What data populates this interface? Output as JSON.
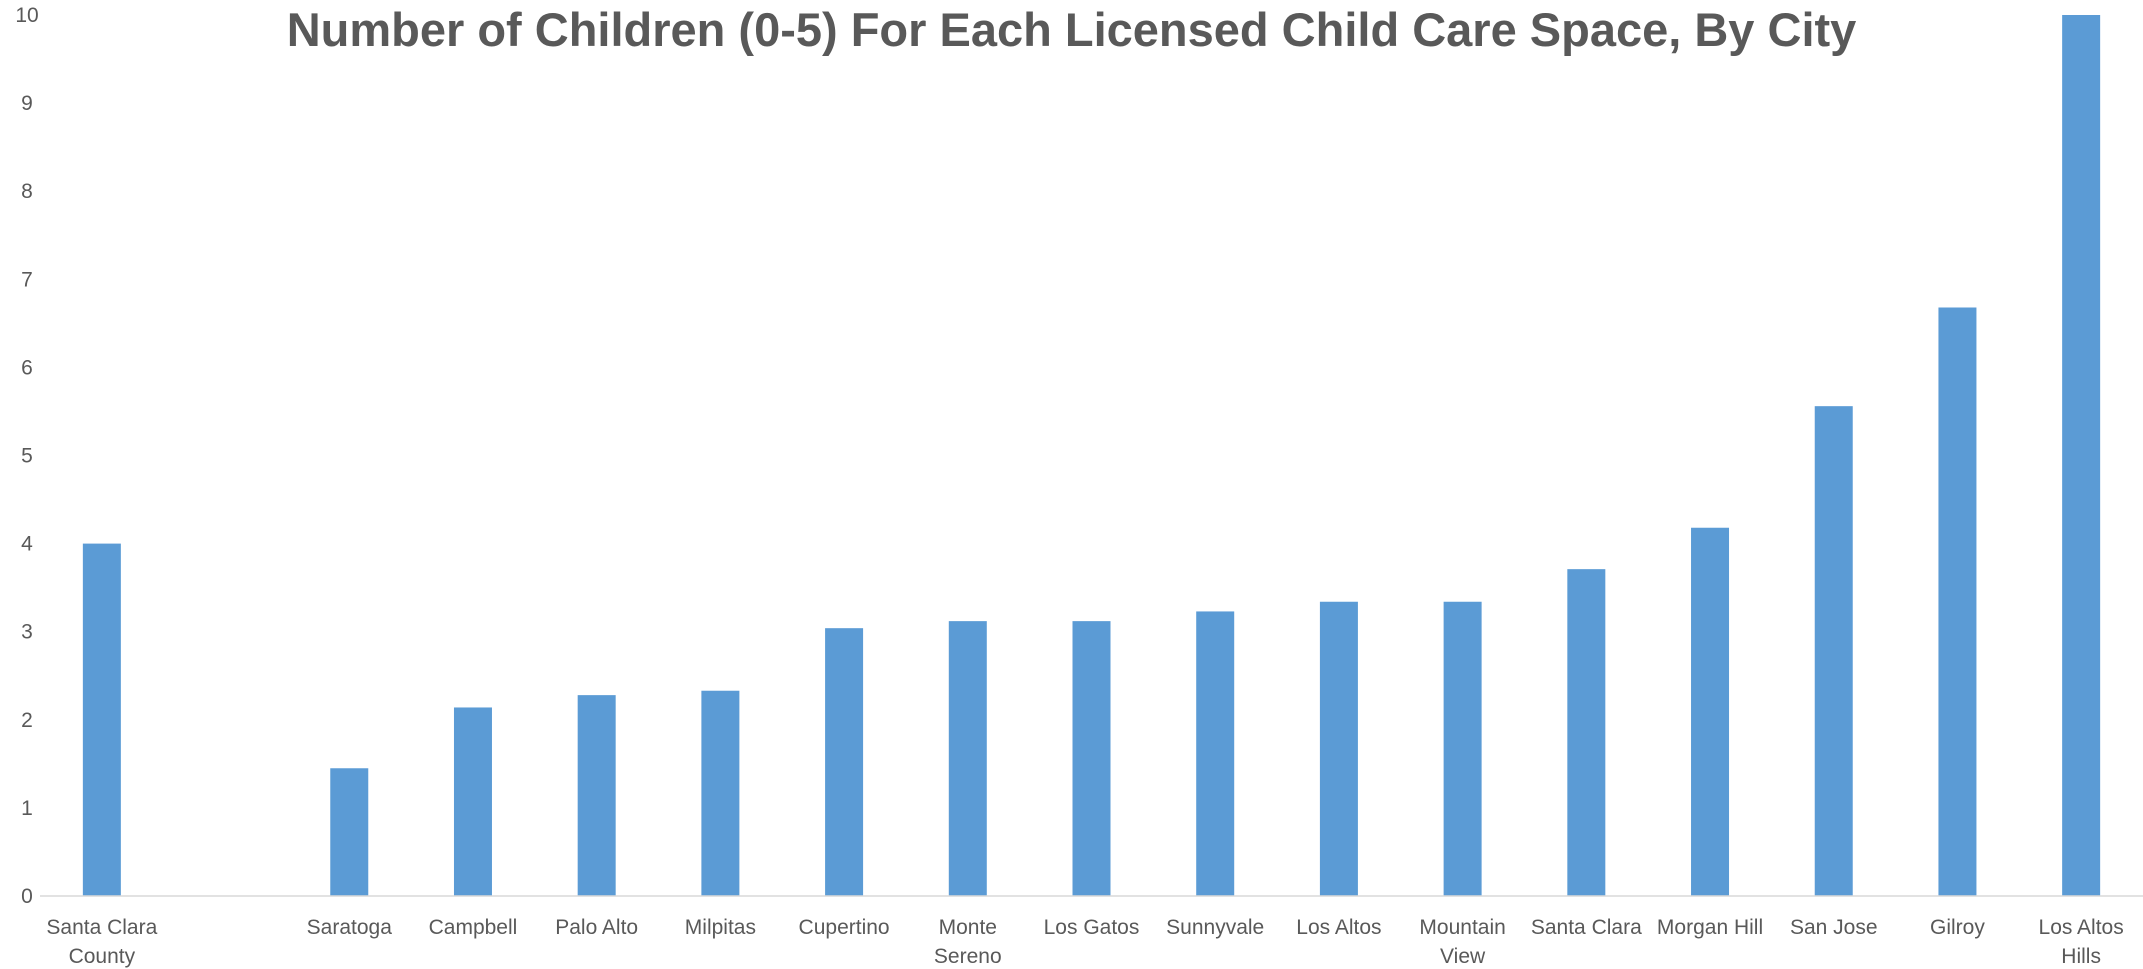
{
  "chart_data": {
    "type": "bar",
    "title": "Number of Children (0-5) For Each Licensed Child Care Space, By City",
    "xlabel": "",
    "ylabel": "",
    "ylim": [
      0,
      10
    ],
    "yticks": [
      0,
      1,
      2,
      3,
      4,
      5,
      6,
      7,
      8,
      9,
      10
    ],
    "grid": false,
    "legend": "none",
    "bar_color": "#5B9BD5",
    "categories": [
      [
        "Santa Clara",
        "County"
      ],
      [
        ""
      ],
      [
        "Saratoga"
      ],
      [
        "Campbell"
      ],
      [
        "Palo Alto"
      ],
      [
        "Milpitas"
      ],
      [
        "Cupertino"
      ],
      [
        "Monte",
        "Sereno"
      ],
      [
        "Los Gatos"
      ],
      [
        "Sunnyvale"
      ],
      [
        "Los Altos"
      ],
      [
        "Mountain",
        "View"
      ],
      [
        "Santa Clara"
      ],
      [
        "Morgan Hill"
      ],
      [
        "San Jose"
      ],
      [
        "Gilroy"
      ],
      [
        "Los Altos",
        "Hills"
      ]
    ],
    "values": [
      4.0,
      null,
      1.45,
      2.14,
      2.28,
      2.33,
      3.04,
      3.12,
      3.12,
      3.23,
      3.34,
      3.34,
      3.71,
      4.18,
      5.56,
      6.68,
      10.0
    ]
  }
}
